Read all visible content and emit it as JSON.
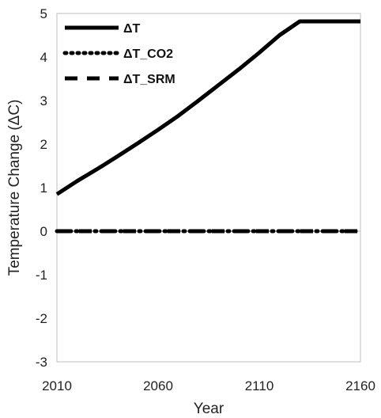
{
  "chart_data": {
    "type": "line",
    "xlabel": "Year",
    "ylabel": "Temperature Change (ΔC)",
    "xlim": [
      2010,
      2160
    ],
    "ylim": [
      -3,
      5
    ],
    "xticks": [
      "2010",
      "2060",
      "2110",
      "2160"
    ],
    "yticks": [
      "-3",
      "-2",
      "-1",
      "0",
      "1",
      "2",
      "3",
      "4",
      "5"
    ],
    "grid": false,
    "legend_position": "top-left",
    "series": [
      {
        "name": "ΔT",
        "style": "solid",
        "color": "#000000",
        "x": [
          2010,
          2020,
          2030,
          2040,
          2050,
          2060,
          2070,
          2080,
          2090,
          2100,
          2110,
          2120,
          2130,
          2140,
          2145,
          2150,
          2155,
          2160
        ],
        "y": [
          0.85,
          1.15,
          1.43,
          1.72,
          2.02,
          2.33,
          2.65,
          3.0,
          3.36,
          3.72,
          4.1,
          4.5,
          4.88,
          5.25,
          5.38,
          5.46,
          5.5,
          5.51
        ]
      },
      {
        "name": "ΔT_CO2",
        "style": "dotted",
        "color": "#000000",
        "x": [
          2010,
          2160
        ],
        "y": [
          0,
          0
        ]
      },
      {
        "name": "ΔT_SRM",
        "style": "dashed",
        "color": "#000000",
        "x": [
          2010,
          2160
        ],
        "y": [
          0,
          0
        ]
      }
    ]
  }
}
